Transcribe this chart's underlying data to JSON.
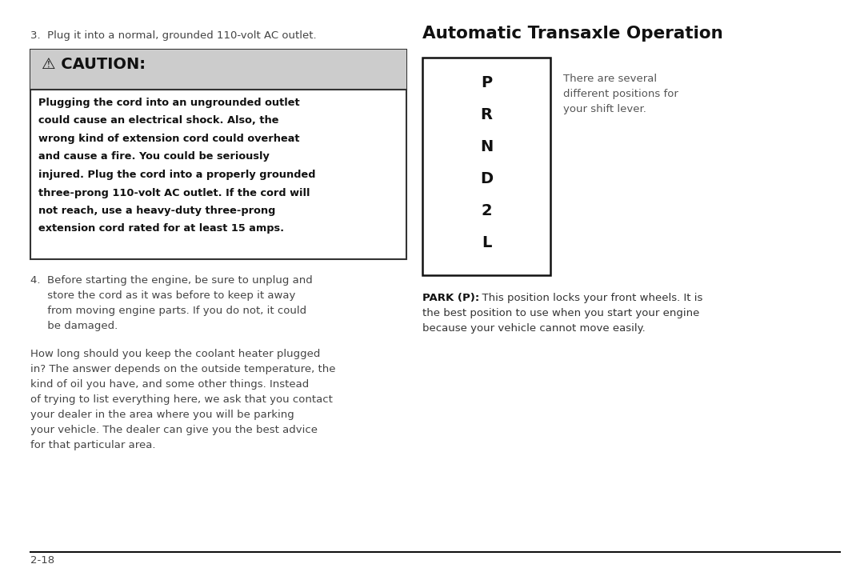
{
  "background_color": "#ffffff",
  "page_number": "2-18",
  "left_column": {
    "step3_text": "3.  Plug it into a normal, grounded 110-volt AC outlet.",
    "caution_title": "⚠ CAUTION:",
    "caution_bg": "#cccccc",
    "caution_body_lines": [
      "Plugging the cord into an ungrounded outlet",
      "could cause an electrical shock. Also, the",
      "wrong kind of extension cord could overheat",
      "and cause a fire. You could be seriously",
      "injured. Plug the cord into a properly grounded",
      "three-prong 110-volt AC outlet. If the cord will",
      "not reach, use a heavy-duty three-prong",
      "extension cord rated for at least 15 amps."
    ],
    "step4_lines": [
      "4.  Before starting the engine, be sure to unplug and",
      "     store the cord as it was before to keep it away",
      "     from moving engine parts. If you do not, it could",
      "     be damaged."
    ],
    "para_lines": [
      "How long should you keep the coolant heater plugged",
      "in? The answer depends on the outside temperature, the",
      "kind of oil you have, and some other things. Instead",
      "of trying to list everything here, we ask that you contact",
      "your dealer in the area where you will be parking",
      "your vehicle. The dealer can give you the best advice",
      "for that particular area."
    ]
  },
  "right_column": {
    "section_title": "Automatic Transaxle Operation",
    "shift_positions": [
      "P",
      "R",
      "N",
      "D",
      "2",
      "L"
    ],
    "side_note_lines": [
      "There are several",
      "different positions for",
      "your shift lever."
    ],
    "park_bold": "PARK (P):",
    "park_rest_line1": "  This position locks your front wheels. It is",
    "park_rest_lines": [
      "the best position to use when you start your engine",
      "because your vehicle cannot move easily."
    ]
  }
}
